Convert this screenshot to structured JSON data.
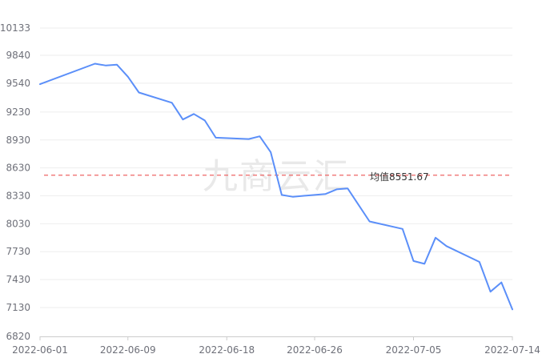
{
  "chart_data": {
    "type": "line",
    "watermark": "九商云汇",
    "ylim": [
      6820,
      10133
    ],
    "y_ticks": [
      6820,
      7130,
      7430,
      7730,
      8030,
      8330,
      8630,
      8930,
      9230,
      9540,
      9840,
      10133
    ],
    "x_range": [
      "2022-06-01",
      "2022-07-14"
    ],
    "x_ticks": [
      "2022-06-01",
      "2022-06-09",
      "2022-06-18",
      "2022-06-26",
      "2022-07-05",
      "2022-07-14"
    ],
    "grid": true,
    "average": {
      "label": "均值8551.67",
      "value": 8551.67,
      "color": "#ee6666"
    },
    "series": [
      {
        "color": "#5b8ff9",
        "points": [
          {
            "x": "2022-06-01",
            "y": 9530
          },
          {
            "x": "2022-06-06",
            "y": 9750
          },
          {
            "x": "2022-06-07",
            "y": 9730
          },
          {
            "x": "2022-06-08",
            "y": 9740
          },
          {
            "x": "2022-06-09",
            "y": 9610
          },
          {
            "x": "2022-06-10",
            "y": 9440
          },
          {
            "x": "2022-06-13",
            "y": 9330
          },
          {
            "x": "2022-06-14",
            "y": 9150
          },
          {
            "x": "2022-06-15",
            "y": 9210
          },
          {
            "x": "2022-06-16",
            "y": 9140
          },
          {
            "x": "2022-06-17",
            "y": 8955
          },
          {
            "x": "2022-06-20",
            "y": 8940
          },
          {
            "x": "2022-06-21",
            "y": 8970
          },
          {
            "x": "2022-06-22",
            "y": 8800
          },
          {
            "x": "2022-06-23",
            "y": 8340
          },
          {
            "x": "2022-06-24",
            "y": 8320
          },
          {
            "x": "2022-06-27",
            "y": 8350
          },
          {
            "x": "2022-06-28",
            "y": 8400
          },
          {
            "x": "2022-06-29",
            "y": 8410
          },
          {
            "x": "2022-07-01",
            "y": 8055
          },
          {
            "x": "2022-07-04",
            "y": 7975
          },
          {
            "x": "2022-07-05",
            "y": 7630
          },
          {
            "x": "2022-07-06",
            "y": 7600
          },
          {
            "x": "2022-07-07",
            "y": 7880
          },
          {
            "x": "2022-07-08",
            "y": 7790
          },
          {
            "x": "2022-07-11",
            "y": 7620
          },
          {
            "x": "2022-07-12",
            "y": 7300
          },
          {
            "x": "2022-07-13",
            "y": 7400
          },
          {
            "x": "2022-07-14",
            "y": 7110
          }
        ]
      }
    ]
  }
}
